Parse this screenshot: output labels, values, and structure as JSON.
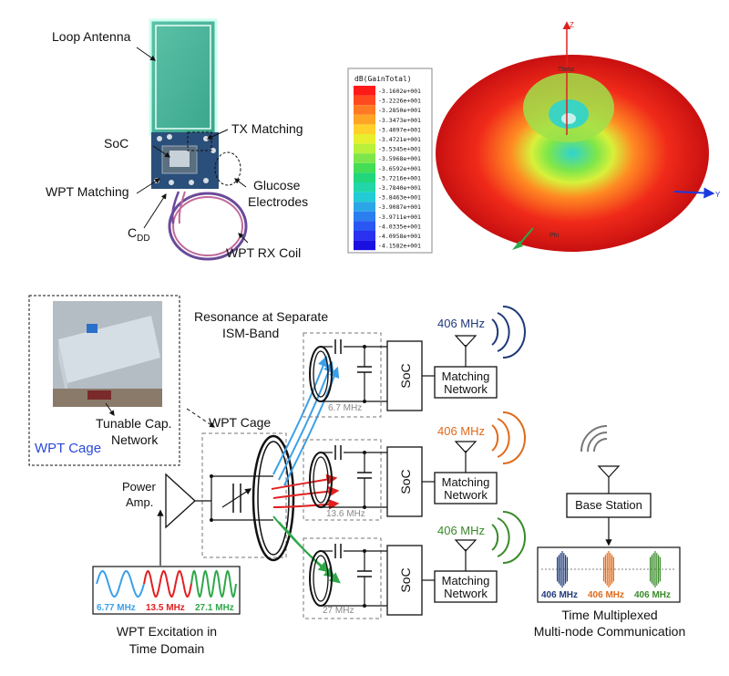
{
  "device_photo": {
    "labels": {
      "loop_antenna": "Loop Antenna",
      "tx_matching": "TX Matching",
      "soc": "SoC",
      "glucose_1": "Glucose",
      "glucose_2": "Electrodes",
      "wpt_matching": "WPT Matching",
      "cdd_main": "C",
      "cdd_sub": "DD",
      "wpt_rx_coil": "WPT RX Coil"
    }
  },
  "radiation_pattern": {
    "legend_title": "dB(GainTotal)",
    "legend_values": [
      "-3.1602e+001",
      "-3.2226e+001",
      "-3.2850e+001",
      "-3.3473e+001",
      "-3.4097e+001",
      "-3.4721e+001",
      "-3.5345e+001",
      "-3.5968e+001",
      "-3.6592e+001",
      "-3.7216e+001",
      "-3.7840e+001",
      "-3.8463e+001",
      "-3.9087e+001",
      "-3.9711e+001",
      "-4.0335e+001",
      "-4.0958e+001",
      "-4.1582e+001"
    ],
    "legend_colors": [
      "#ff1a1a",
      "#ff4a1f",
      "#ff7a22",
      "#ffa526",
      "#ffd12a",
      "#e8ef2e",
      "#b8f03a",
      "#7ee64a",
      "#44dd55",
      "#22d67a",
      "#22d6a8",
      "#22ccd4",
      "#2aa6e6",
      "#2a7ef0",
      "#2a56f2",
      "#2a30f0",
      "#1a10e0"
    ],
    "axis_z": "Z",
    "axis_y": "Y",
    "axis_theta": "Theta",
    "axis_phi": "Phi"
  },
  "system_diagram": {
    "resonance_1": "Resonance at Separate",
    "resonance_2": "ISM-Band",
    "inset_caption_1": "Tunable Cap.",
    "inset_caption_2": "Network",
    "inset_title": "WPT Cage",
    "wpt_cage": "WPT Cage",
    "power_amp_1": "Power",
    "power_amp_2": "Amp.",
    "excitation_1": "WPT Excitation in",
    "excitation_2": "Time Domain",
    "freq_labels": [
      "6.77 MHz",
      "13.5 MHz",
      "27.1 MHz"
    ],
    "freq_colors": [
      "#3aa0e8",
      "#e02020",
      "#2fa84a"
    ],
    "nodes": [
      {
        "res": "6.7 MHz",
        "radio": "406 MHz",
        "soc": "SoC",
        "match_1": "Matching",
        "match_2": "Network",
        "color": "#1f3a7a",
        "arrow_color": "#3aa0e8"
      },
      {
        "res": "13.6 MHz",
        "radio": "406 MHz",
        "soc": "SoC",
        "match_1": "Matching",
        "match_2": "Network",
        "color": "#e06a1a",
        "arrow_color": "#e02020"
      },
      {
        "res": "27 MHz",
        "radio": "406 MHz",
        "soc": "SoC",
        "match_1": "Matching",
        "match_2": "Network",
        "color": "#3a8a2a",
        "arrow_color": "#2fa84a"
      }
    ],
    "base_station": "Base Station",
    "bs_freq_labels": [
      "406 MHz",
      "406 MHz",
      "406 MHz"
    ],
    "bs_freq_colors": [
      "#1f3a7a",
      "#e06a1a",
      "#3a8a2a"
    ],
    "tm_1": "Time Multiplexed",
    "tm_2": "Multi-node Communication"
  }
}
